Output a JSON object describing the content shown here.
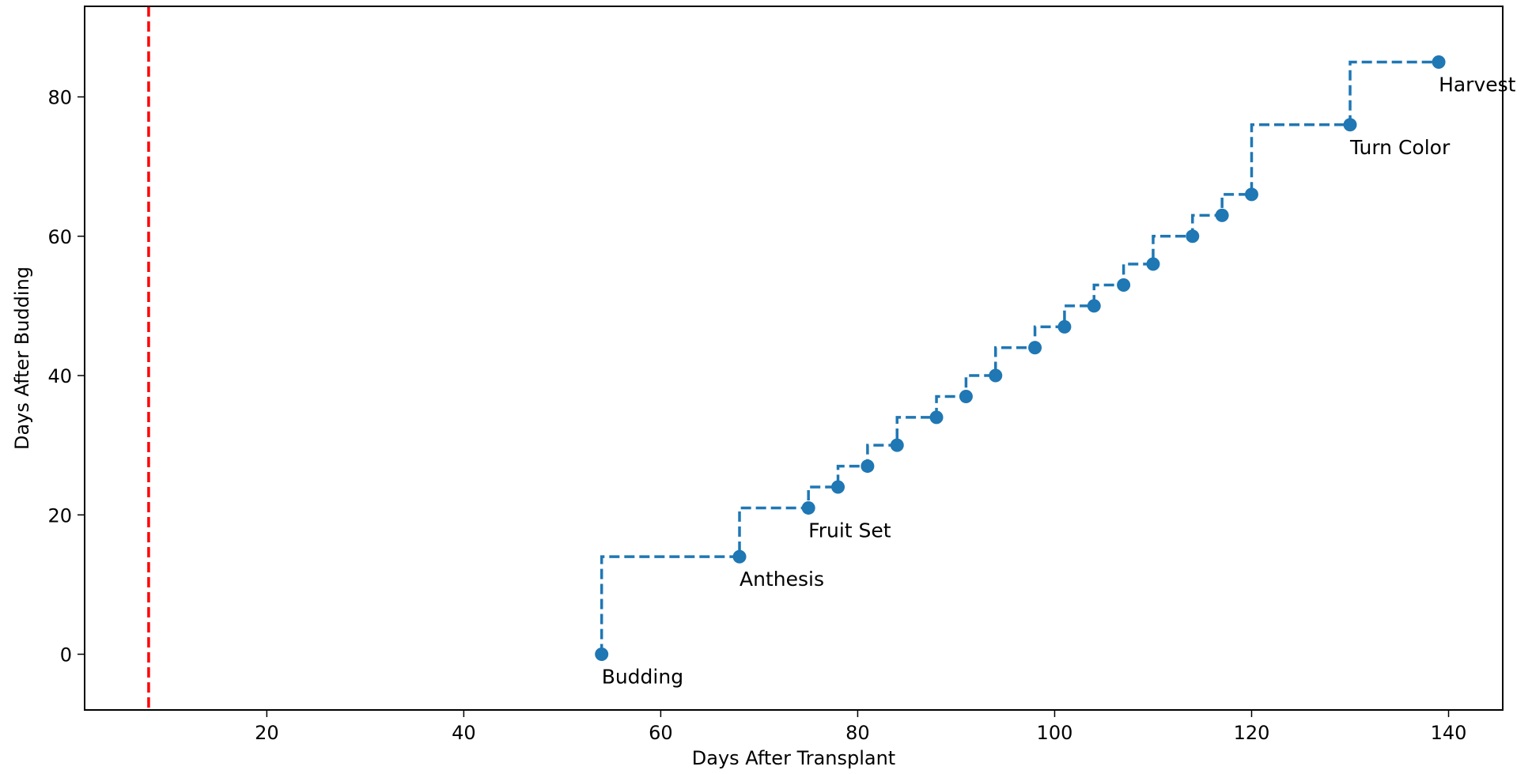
{
  "chart_data": {
    "type": "line",
    "title": "",
    "xlabel": "Days After Transplant",
    "ylabel": "Days After Budding",
    "xlim": [
      1.5,
      145.5
    ],
    "ylim": [
      -8,
      93
    ],
    "xticks": [
      20,
      40,
      60,
      80,
      100,
      120,
      140
    ],
    "yticks": [
      0,
      20,
      40,
      60,
      80
    ],
    "grid": false,
    "legend": "none",
    "reference_line": {
      "x": 8,
      "color": "#ff0000",
      "style": "dashed"
    },
    "series": [
      {
        "color": "#1f77b4",
        "step": "post",
        "line_style": "dashed",
        "marker": "circle",
        "x": [
          54,
          68,
          75,
          78,
          81,
          84,
          88,
          91,
          94,
          98,
          101,
          104,
          107,
          110,
          114,
          117,
          120,
          130,
          139
        ],
        "y": [
          0,
          14,
          21,
          24,
          27,
          30,
          34,
          37,
          40,
          44,
          47,
          50,
          53,
          56,
          60,
          63,
          66,
          76,
          85
        ]
      }
    ],
    "annotations": [
      {
        "text": "Budding",
        "x": 54,
        "y": 0
      },
      {
        "text": "Anthesis",
        "x": 68,
        "y": 14
      },
      {
        "text": "Fruit Set",
        "x": 75,
        "y": 21
      },
      {
        "text": "Turn Color",
        "x": 130,
        "y": 76
      },
      {
        "text": "Harvest",
        "x": 139,
        "y": 85
      }
    ]
  }
}
